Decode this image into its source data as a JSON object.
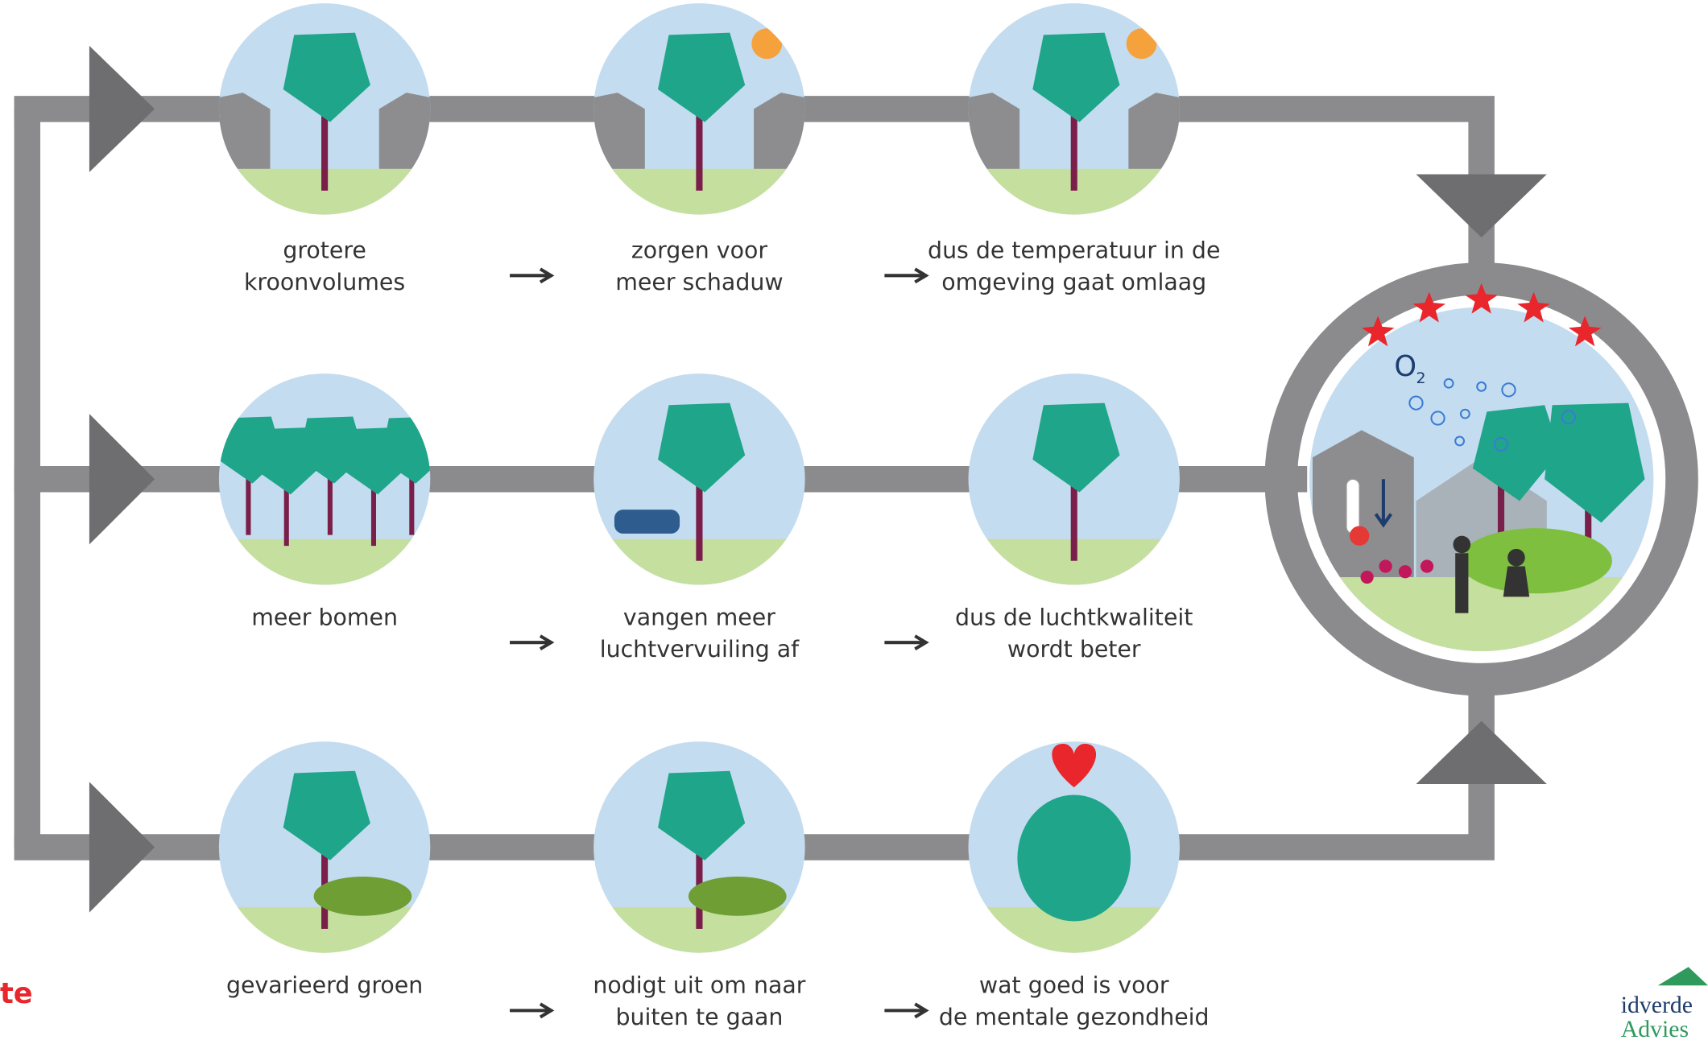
{
  "rows": [
    {
      "steps": [
        {
          "lines": [
            "grotere",
            "kroonvolumes"
          ]
        },
        {
          "lines": [
            "zorgen voor",
            "meer schaduw"
          ]
        },
        {
          "lines": [
            "dus de temperatuur in de",
            "omgeving gaat omlaag"
          ]
        }
      ]
    },
    {
      "steps": [
        {
          "lines": [
            "meer bomen"
          ]
        },
        {
          "lines": [
            "vangen meer",
            "luchtvervuiling af"
          ]
        },
        {
          "lines": [
            "dus de luchtkwaliteit",
            "wordt beter"
          ]
        }
      ]
    },
    {
      "steps": [
        {
          "lines": [
            "gevarieerd groen"
          ]
        },
        {
          "lines": [
            "nodigt uit om naar",
            "buiten te gaan"
          ]
        },
        {
          "lines": [
            "wat goed is voor",
            "de mentale gezondheid"
          ]
        }
      ]
    }
  ],
  "logo_left": "te",
  "logo_right": {
    "brand": "idverde",
    "sub": "Advies"
  }
}
